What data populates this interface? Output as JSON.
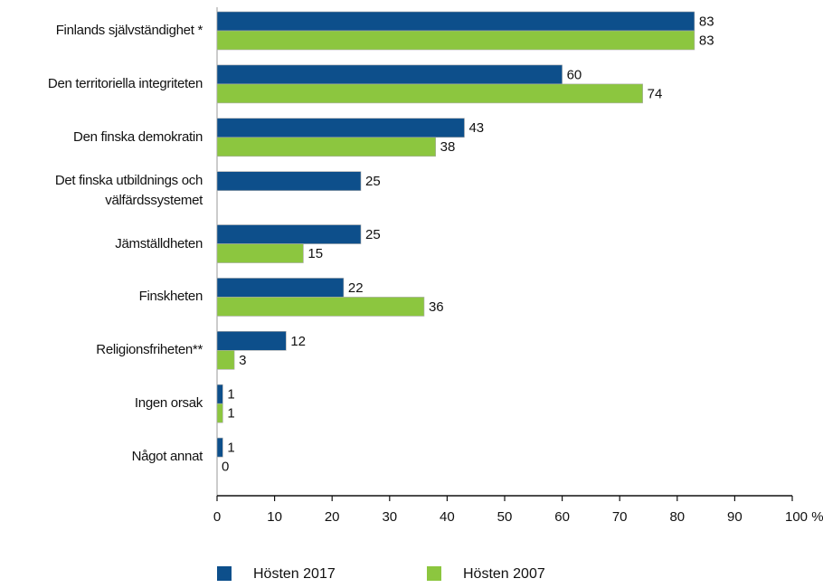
{
  "chart_data": {
    "type": "bar",
    "orientation": "horizontal",
    "categories": [
      "Finlands självständighet *",
      "Den territoriella integriteten",
      "Den finska demokratin",
      "Det finska utbildnings och välfärdssystemet",
      "Jämställdheten",
      "Finskheten",
      "Religionsfriheten**",
      "Ingen orsak",
      "Något annat"
    ],
    "series": [
      {
        "name": "Hösten 2017",
        "color": "#0d4f8b",
        "values": [
          83,
          60,
          43,
          25,
          25,
          22,
          12,
          1,
          1
        ]
      },
      {
        "name": "Hösten 2007",
        "color": "#8cc63f",
        "values": [
          83,
          74,
          38,
          null,
          15,
          36,
          3,
          1,
          0
        ]
      }
    ],
    "xlim": [
      0,
      100
    ],
    "xticks": [
      0,
      10,
      20,
      30,
      40,
      50,
      60,
      70,
      80,
      90,
      {
        "value": 100,
        "label": "100 %"
      }
    ],
    "legend": "bottom"
  }
}
